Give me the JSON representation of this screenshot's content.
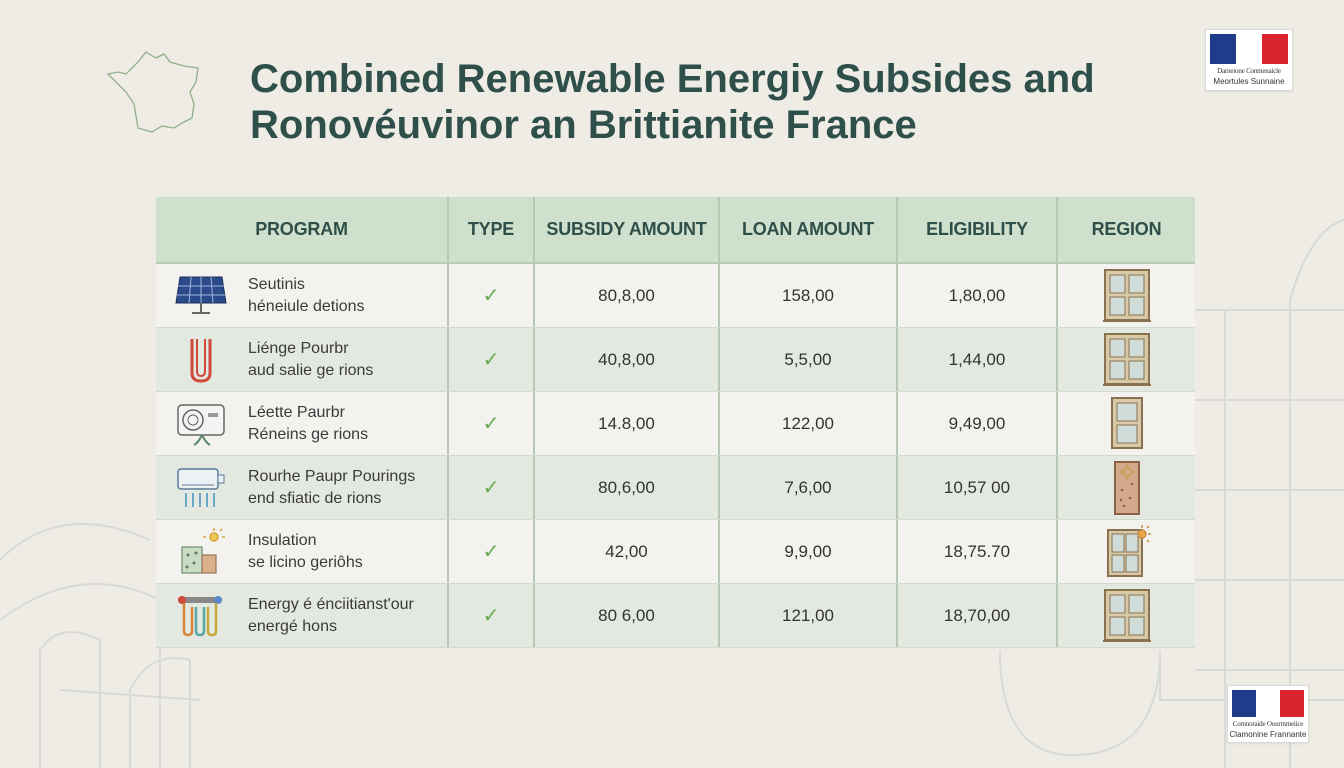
{
  "title_line1": "Combined Renewable Energiy Subsides and",
  "title_line2": "Ronovéuvinor an Brittianite France",
  "logo_top": {
    "line1": "Darneione Conmenaicle",
    "line2": "Meortules Sunnaine"
  },
  "logo_bottom": {
    "line1": "Comnoraide Oourmmeiice",
    "line2": "Clamonine Frannante"
  },
  "table": {
    "headers": [
      "PROGRAM",
      "TYPE",
      "SUBSIDY AMOUNT",
      "LOAN AMOUNT",
      "ELIGIBILITY",
      "REGION"
    ],
    "rows": [
      {
        "icon": "solar-panel-icon",
        "name1": "Seutinis",
        "name2": "héneiule detions",
        "type": "✓",
        "subsidy": "80,8,00",
        "loan": "158,00",
        "eligibility": "1,80,00",
        "region_icon": "window-icon"
      },
      {
        "icon": "heat-coil-icon",
        "name1": "Liénge Pourbr",
        "name2": "aud salie ge rions",
        "type": "✓",
        "subsidy": "40,8,00",
        "loan": "5,5,00",
        "eligibility": "1,44,00",
        "region_icon": "window-icon"
      },
      {
        "icon": "heat-pump-icon",
        "name1": "Léette Paurbr",
        "name2": "Réneins ge rions",
        "type": "✓",
        "subsidy": "14.8,00",
        "loan": "122,00",
        "eligibility": "9,49,00",
        "region_icon": "narrow-window-icon"
      },
      {
        "icon": "air-conditioner-icon",
        "name1": "Rourhe Paupr Pourings",
        "name2": "end sfiatic de rions",
        "type": "✓",
        "subsidy": "80,6,00",
        "loan": "7,6,00",
        "eligibility": "10,57 00",
        "region_icon": "insulated-door-icon"
      },
      {
        "icon": "insulation-icon",
        "name1": "Insulation",
        "name2": "se licino geriôhs",
        "type": "✓",
        "subsidy": "42,00",
        "loan": "9,9,00",
        "eligibility": "18,75.70",
        "region_icon": "sunny-window-icon"
      },
      {
        "icon": "heating-pipes-icon",
        "name1": "Energy é énciitianst'our",
        "name2": "energé hons",
        "type": "✓",
        "subsidy": "80 6,00",
        "loan": "121,00",
        "eligibility": "18,70,00",
        "region_icon": "window-icon"
      }
    ]
  },
  "colors": {
    "title": "#2f4f4b",
    "header_bg": "#cfe0cc",
    "check": "#6aa84f",
    "frame": "#a08865"
  }
}
